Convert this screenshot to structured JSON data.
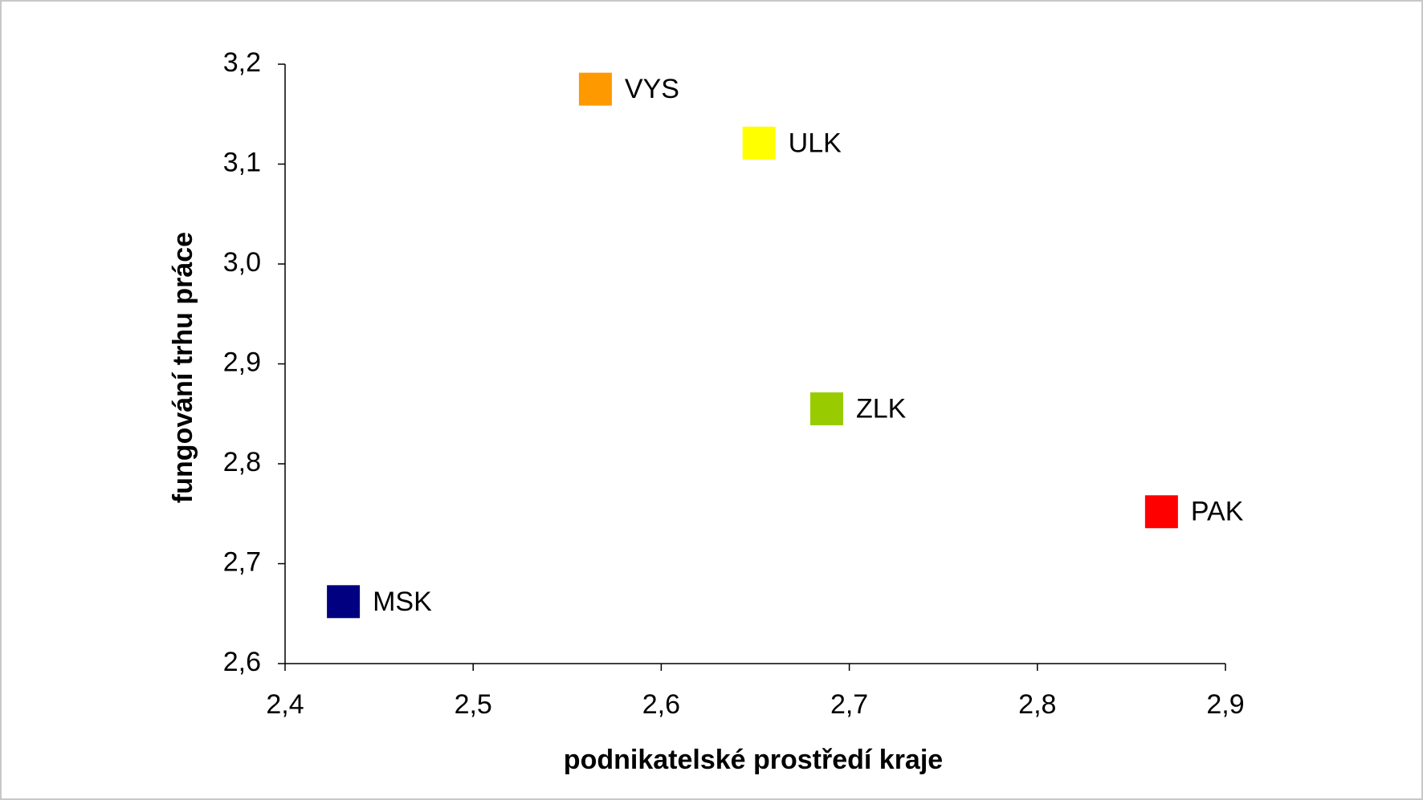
{
  "chart_data": {
    "type": "scatter",
    "x_label": "podnikatelské prostředí kraje",
    "y_label": "fungování trhu práce",
    "xlim": [
      2.4,
      2.9
    ],
    "ylim": [
      2.6,
      3.2
    ],
    "xticks": [
      {
        "value": 2.4,
        "label": "2,4"
      },
      {
        "value": 2.5,
        "label": "2,5"
      },
      {
        "value": 2.6,
        "label": "2,6"
      },
      {
        "value": 2.7,
        "label": "2,7"
      },
      {
        "value": 2.8,
        "label": "2,8"
      },
      {
        "value": 2.9,
        "label": "2,9"
      }
    ],
    "yticks": [
      {
        "value": 2.6,
        "label": "2,6"
      },
      {
        "value": 2.7,
        "label": "2,7"
      },
      {
        "value": 2.8,
        "label": "2,8"
      },
      {
        "value": 2.9,
        "label": "2,9"
      },
      {
        "value": 3.0,
        "label": "3,0"
      },
      {
        "value": 3.1,
        "label": "3,1"
      },
      {
        "value": 3.2,
        "label": "3,2"
      }
    ],
    "series": [
      {
        "name": "VYS",
        "color": "#ff9900",
        "x": [
          2.565
        ],
        "values": [
          3.175
        ]
      },
      {
        "name": "ULK",
        "color": "#ffff00",
        "x": [
          2.652
        ],
        "values": [
          3.121
        ]
      },
      {
        "name": "ZLK",
        "color": "#99cc00",
        "x": [
          2.688
        ],
        "values": [
          2.855
        ]
      },
      {
        "name": "PAK",
        "color": "#ff0000",
        "x": [
          2.866
        ],
        "values": [
          2.752
        ]
      },
      {
        "name": "MSK",
        "color": "#000080",
        "x": [
          2.431
        ],
        "values": [
          2.662
        ]
      }
    ]
  }
}
